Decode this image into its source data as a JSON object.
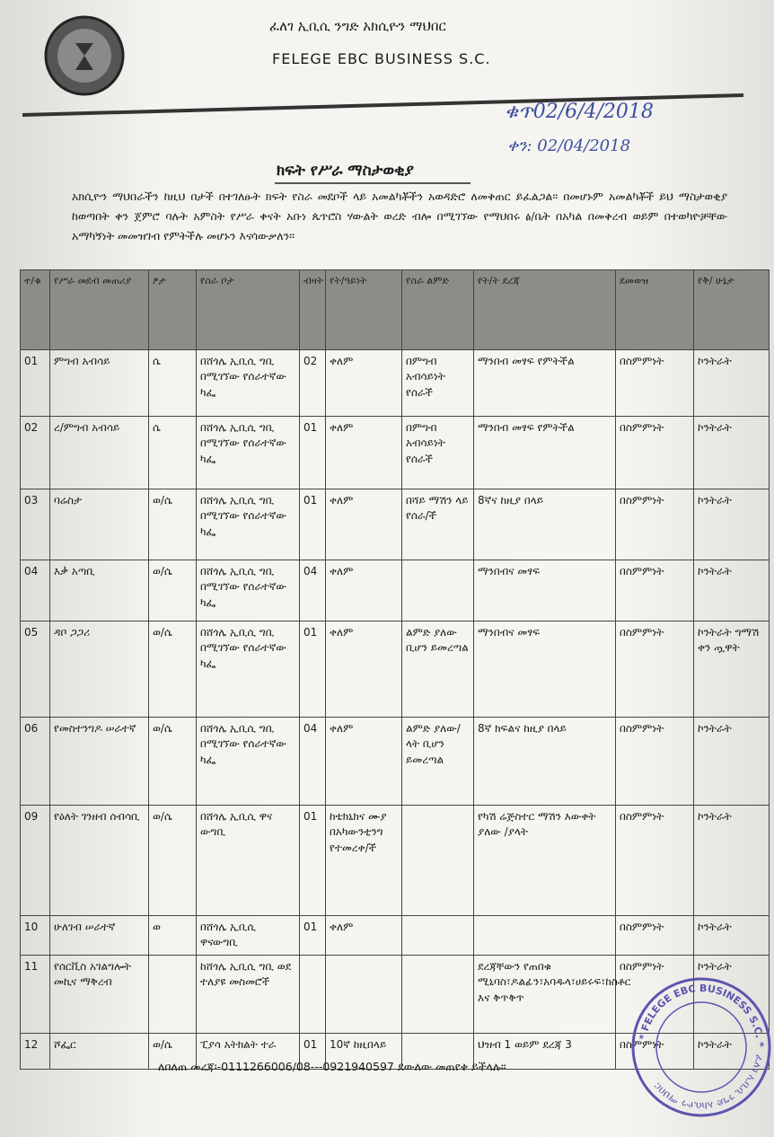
{
  "header": {
    "org_amharic": "ፈለገ ኢቢሲ ንግድ አክሲዮን ማህበር",
    "org_english": "FELEGE EBC BUSINESS S.C.",
    "ref_no": "ቁጥ02/6/4/2018",
    "date": "ቀን: 02/04/2018"
  },
  "title": "ክፍት የሥራ ማስታወቂያ",
  "intro": "አክሲዮን ማህበራችን ከዚህ በታች በተገለፁት ክፍት የስራ መደቦች ላይ አመልካቾችን አወዳድሮ ለመቅጠር ይፈልጋል፡፡ በመሆኑም አመልካቾች ይህ ማስታወቂያ ከወጣበት ቀን ጀምሮ ባሉት አምስት የሥራ ቀናት አቡነ ጴጥሮስ ሃውልት ወረድ ብሎ በሚገኘው የማህበሩ ፅ/ቤት በአካል በመቅረብ ወይም በተወካዮቻቸው አማካኝነት መመዝገብ የምትችሉ መሆኑን እናሳውቃለን፡፡",
  "table": {
    "headers": [
      "ተ/ቁ",
      "የሥራ መደብ መጠሪያ",
      "ፆታ",
      "የስራ ቦታ",
      "ብዛት",
      "የት/ዓይነት",
      "የስራ ልምድ",
      "የት/ት ደረጃ",
      "ደመወዝ",
      "የቅ/ ሁኔታ"
    ],
    "rows": [
      [
        "01",
        "ምግብ አብሳይ",
        "ሴ",
        "በሸጎሌ ኢቢሲ ግቢ በሚገኘው የሰራተኛው ካፌ",
        "02",
        "ቀለም",
        "በምግብ አብሳይነት የሰራች",
        "ማንበብ መፃፍ የምትችል",
        "በስምምነት",
        "ኮንትራት"
      ],
      [
        "02",
        "ረ/ምግብ አብሳይ",
        "ሴ",
        "በሸጎሌ ኢቢሲ ግቢ በሚገኘው የሰራተኛው ካፌ",
        "01",
        "ቀለም",
        "በምግብ አብሳይነት የሰራች",
        "ማንበብ መፃፍ የምትችል",
        "በስምምነት",
        "ኮንትራት"
      ],
      [
        "03",
        "ባሬስታ",
        "ወ/ሴ",
        "በሸጎሌ ኢቢሲ ግቢ በሚገኘው የሰራተኛው ካፌ",
        "01",
        "ቀለም",
        "በሻይ ማሽን ላይ የሰራ/ች",
        "8ኛና ከዚያ በላይ",
        "በስምምነት",
        "ኮንትራት"
      ],
      [
        "04",
        "እቃ አጣቢ",
        "ወ/ሴ",
        "በሸጎሌ ኢቢሲ ግቢ በሚገኘው የሰራተኛው ካፌ",
        "04",
        "ቀለም",
        null,
        "ማንበብና መፃፍ",
        "በስምምነት",
        "ኮንትራት"
      ],
      [
        "05",
        "ዳቦ ጋጋሪ",
        "ወ/ሴ",
        "በሸጎሌ ኢቢሲ ግቢ በሚገኘው የሰራተኛው ካፌ",
        "01",
        "ቀለም",
        "ልምድ ያለው ቢሆን ይመረጣል",
        "ማንበብና መፃፍ",
        "በስምምነት",
        "ኮንትራት ግማሽ ቀን ጧዋት"
      ],
      [
        "06",
        "የመስተንግዶ ሠራተኛ",
        "ወ/ሴ",
        "በሸጎሌ ኢቢሲ ግቢ በሚገኘው የሰራተኛው ካፌ",
        "04",
        "ቀለም",
        "ልምድ ያለው/ላት ቢሆን ይመረጣል",
        "8ኛ ክፍልና ከዚያ በላይ",
        "በስምምነት",
        "ኮንትራት"
      ],
      [
        "09",
        "የዕለት ገንዘብ ሰብሳቢ",
        "ወ/ሴ",
        "በሸጎሌ ኢቢሲ ዋና ውግቢ",
        "01",
        "ከቴክኒክና ሙያ በአካውንቲንግ የተመረቀ/ች",
        null,
        "የካሽ ሬጅስተር ማሽን እውቀት ያለው /ያላት",
        "በስምምነት",
        "ኮንትራት"
      ],
      [
        "10",
        "ሁለገብ ሠራተኛ",
        "ወ",
        "በሸጎሌ ኢቢሲ ዋናውግቢ",
        "01",
        "ቀለም",
        null,
        null,
        "በስምምነት",
        "ኮንትራት"
      ],
      [
        "11",
        "የሰርቪስ አገልግሎት መኪና ማቅረብ",
        null,
        "ከሸጎሌ ኢቢሲ ግቢ ወደ ተለያዩ መስመሮች",
        null,
        null,
        null,
        "ደረጃቸውን የጠበቁ ሚኒባስ፣ዶልፊን፣አባዱላ፣ሀይሩፍ፣ከስቶር እና ቅጥቅጥ",
        "በስምምነት",
        "ኮንትራት"
      ],
      [
        "12",
        "ሾፌር",
        "ወ/ሴ",
        "ፒያሳ አትክልት ተራ",
        "01",
        "10ኛ ከዚበላይ",
        null,
        "ህዝብ 1 ወይም ደረጃ 3",
        "በስምምነት",
        "ኮንትራት"
      ]
    ]
  },
  "footer": "ለበለጠ መረጃ፡-0111266006/08---0921940597 ደውለው መጠየቅ ይችላሉ፡፡",
  "stamp": {
    "amharic": "ፈለገ ኢቢሲ ንግድ አክሲዮን ማህበር",
    "english": "* FELEGE EBC BUSINESS S.C. *"
  }
}
